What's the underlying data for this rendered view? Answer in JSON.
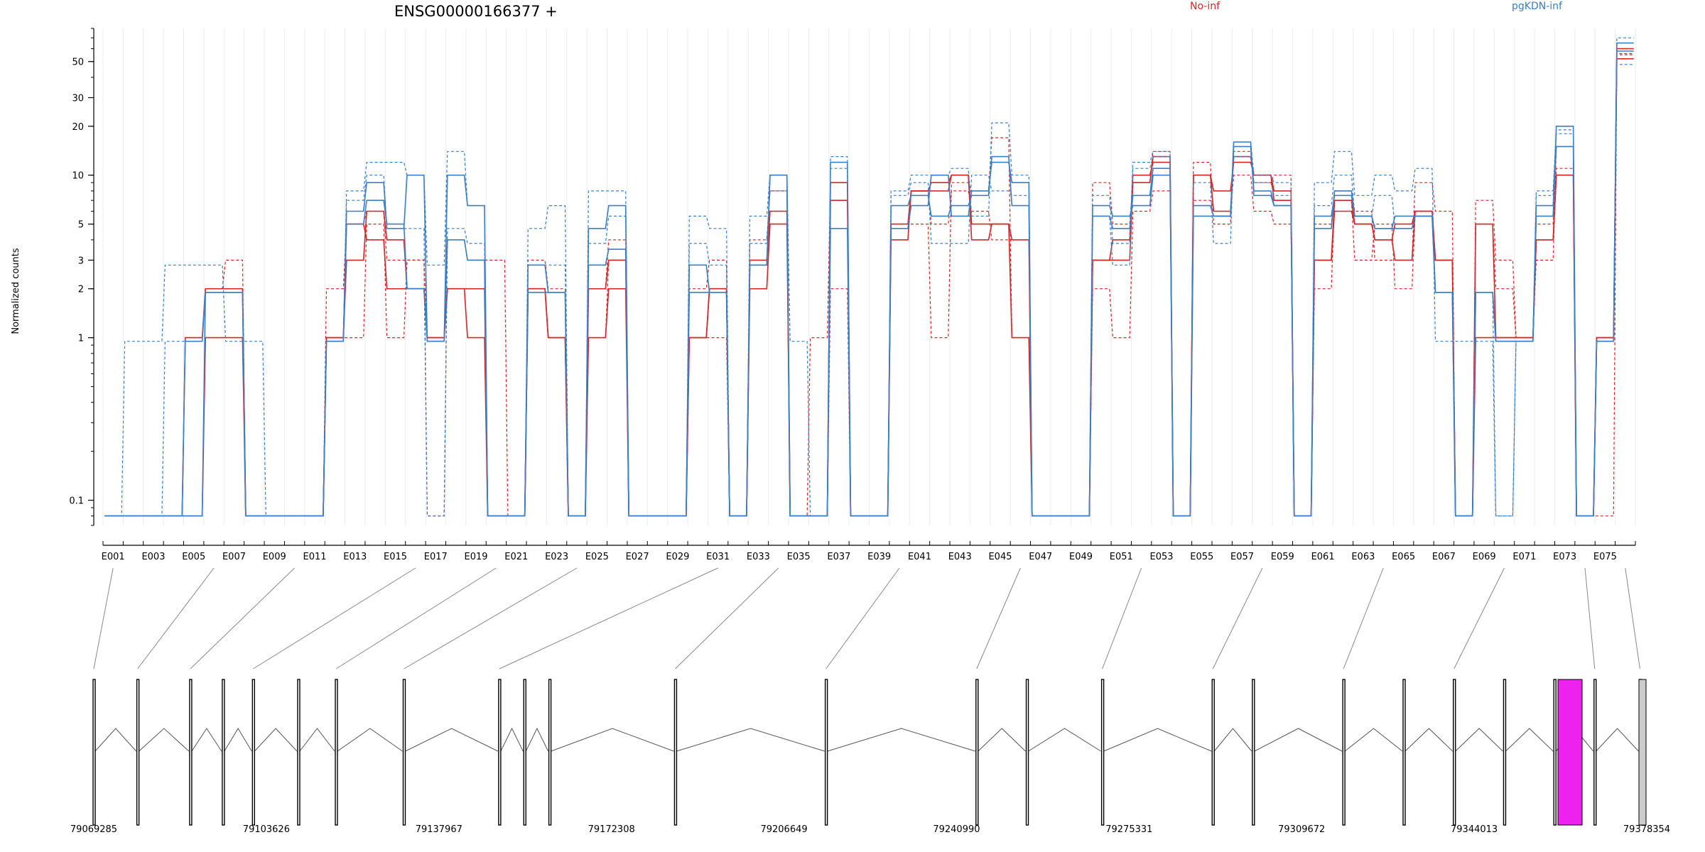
{
  "chart_data": {
    "type": "line",
    "title": "ENSG00000166377 +",
    "ylabel": "Normalized counts",
    "yscale": "log",
    "ylim": [
      0.07,
      80
    ],
    "yticks": [
      0.1,
      1,
      2,
      3,
      5,
      10,
      20,
      30,
      50
    ],
    "ytick_labels": [
      "0.1",
      "1",
      "2",
      "3",
      "5",
      "10",
      "20",
      "30",
      "50"
    ],
    "legend_position": "top",
    "legend": [
      {
        "name": "No-inf",
        "color": "#d62728"
      },
      {
        "name": "pgKDN-inf",
        "color": "#3b7fc4"
      }
    ],
    "exon_tick_labels": [
      "E001",
      "E003",
      "E005",
      "E007",
      "E009",
      "E011",
      "E013",
      "E015",
      "E017",
      "E019",
      "E021",
      "E023",
      "E025",
      "E027",
      "E029",
      "E031",
      "E033",
      "E035",
      "E037",
      "E039",
      "E041",
      "E043",
      "E045",
      "E047",
      "E049",
      "E051",
      "E053",
      "E055",
      "E057",
      "E059",
      "E061",
      "E063",
      "E065",
      "E067",
      "E069",
      "E071",
      "E073",
      "E075"
    ],
    "exons": [
      "E001",
      "E002",
      "E003",
      "E004",
      "E005",
      "E006",
      "E007",
      "E008",
      "E009",
      "E010",
      "E011",
      "E012",
      "E013",
      "E014",
      "E015",
      "E016",
      "E017",
      "E018",
      "E019",
      "E020",
      "E021",
      "E022",
      "E023",
      "E024",
      "E025",
      "E026",
      "E027",
      "E028",
      "E029",
      "E030",
      "E031",
      "E032",
      "E033",
      "E034",
      "E035",
      "E036",
      "E037",
      "E038",
      "E039",
      "E040",
      "E041",
      "E042",
      "E043",
      "E044",
      "E045",
      "E046",
      "E047",
      "E048",
      "E049",
      "E050",
      "E051",
      "E052",
      "E053",
      "E054",
      "E055",
      "E056",
      "E057",
      "E058",
      "E059",
      "E060",
      "E061",
      "E062",
      "E063",
      "E064",
      "E065",
      "E066",
      "E067",
      "E068",
      "E069",
      "E070",
      "E071",
      "E072",
      "E073",
      "E074",
      "E075",
      "E076"
    ],
    "series": [
      {
        "group": "No-inf",
        "style": "solid",
        "values": [
          0.08,
          0.08,
          0.08,
          0.08,
          0.08,
          1,
          1,
          0.08,
          0.08,
          0.08,
          0.08,
          1,
          3,
          6,
          4,
          2,
          1,
          2,
          2,
          0.08,
          0.08,
          2,
          1,
          0.08,
          1,
          2,
          0.08,
          0.08,
          0.08,
          1,
          2,
          0.08,
          2,
          5,
          0.08,
          0.08,
          7,
          0.08,
          0.08,
          4,
          8,
          9,
          10,
          4,
          5,
          1,
          0.08,
          0.08,
          0.08,
          3,
          4,
          10,
          12,
          0.08,
          10,
          8,
          12,
          10,
          8,
          0.08,
          3,
          6,
          5,
          4,
          5,
          6,
          3,
          0.08,
          1,
          1,
          1,
          4,
          10,
          0.08,
          1,
          60
        ]
      },
      {
        "group": "No-inf",
        "style": "dashed",
        "values": [
          0.08,
          0.08,
          0.08,
          0.08,
          1,
          2,
          3,
          0.08,
          0.08,
          0.08,
          0.08,
          2,
          5,
          6,
          3,
          3,
          1,
          4,
          3,
          3,
          0.08,
          3,
          2,
          0.08,
          2,
          4,
          0.08,
          0.08,
          0.08,
          2,
          3,
          0.08,
          4,
          8,
          0.08,
          1,
          9,
          0.08,
          0.08,
          5,
          5,
          1,
          9,
          8,
          17,
          1,
          0.08,
          0.08,
          0.08,
          9,
          5,
          9,
          14,
          0.08,
          12,
          5,
          14,
          9,
          10,
          0.08,
          5,
          8,
          6,
          3,
          3,
          9,
          6,
          0.08,
          7,
          3,
          1,
          5,
          11,
          0.08,
          1,
          56
        ]
      },
      {
        "group": "No-inf",
        "style": "dashed",
        "values": [
          0.08,
          0.08,
          0.08,
          0.08,
          1,
          2,
          2,
          0.08,
          0.08,
          0.08,
          0.08,
          1,
          1,
          5,
          1,
          3,
          0.08,
          4,
          3,
          0.08,
          0.08,
          2,
          1,
          0.08,
          1,
          3,
          0.08,
          0.08,
          0.08,
          1,
          1,
          0.08,
          2,
          6,
          0.08,
          0.08,
          2,
          0.08,
          0.08,
          4,
          8,
          5,
          8,
          6,
          4,
          4,
          0.08,
          0.08,
          0.08,
          2,
          1,
          6,
          8,
          0.08,
          7,
          6,
          10,
          6,
          5,
          0.08,
          2,
          7,
          3,
          5,
          2,
          6,
          3,
          0.08,
          5,
          2,
          1,
          3,
          15,
          0.08,
          0.08,
          55
        ]
      },
      {
        "group": "No-inf",
        "style": "solid",
        "values": [
          0.08,
          0.08,
          0.08,
          0.08,
          1,
          2,
          2,
          0.08,
          0.08,
          0.08,
          0.08,
          1,
          5,
          4,
          2,
          2,
          1,
          2,
          1,
          0.08,
          0.08,
          2,
          1,
          0.08,
          2,
          3,
          0.08,
          0.08,
          0.08,
          1,
          2,
          0.08,
          3,
          6,
          0.08,
          0.08,
          9,
          0.08,
          0.08,
          5,
          8,
          8,
          10,
          5,
          5,
          4,
          0.08,
          0.08,
          0.08,
          3,
          3,
          9,
          13,
          0.08,
          10,
          6,
          13,
          10,
          7,
          0.08,
          3,
          7,
          5,
          4,
          3,
          6,
          3,
          0.08,
          5,
          1,
          1,
          4,
          10,
          0.08,
          1,
          52
        ]
      },
      {
        "group": "pgKDN-inf",
        "style": "solid",
        "values": [
          0.08,
          0.08,
          0.08,
          0.08,
          0.08,
          1.9,
          1.9,
          0.08,
          0.08,
          0.08,
          0.08,
          0.95,
          5,
          7,
          5,
          2,
          0.95,
          4,
          3,
          0.08,
          0.08,
          1.9,
          1.9,
          0.08,
          2.8,
          3.5,
          0.08,
          0.08,
          0.08,
          1.9,
          1.9,
          0.08,
          2.8,
          10,
          0.08,
          0.08,
          4.7,
          0.08,
          0.08,
          4.7,
          6.5,
          10,
          5.6,
          8,
          12,
          9,
          0.08,
          0.08,
          0.08,
          6.5,
          5.6,
          6.5,
          10,
          0.08,
          5.6,
          5.6,
          15,
          8,
          6.5,
          0.08,
          5.6,
          7.5,
          5.6,
          4.7,
          5.6,
          5.6,
          1.9,
          0.08,
          1.9,
          0.95,
          0.95,
          6.5,
          15,
          0.08,
          0.95,
          65
        ]
      },
      {
        "group": "pgKDN-inf",
        "style": "dashed",
        "values": [
          0.08,
          0.95,
          0.95,
          2.8,
          2.8,
          2.8,
          0.95,
          0.95,
          0.08,
          0.08,
          0.08,
          0.95,
          8,
          12,
          12,
          10,
          2.8,
          14,
          6.5,
          0.08,
          0.08,
          4.7,
          6.5,
          0.08,
          8,
          8,
          0.08,
          0.08,
          0.08,
          5.6,
          4.7,
          0.08,
          5.6,
          10,
          0.95,
          0.08,
          13,
          0.08,
          0.08,
          8,
          10,
          10,
          11,
          5.6,
          21,
          10,
          0.08,
          0.08,
          0.08,
          7.5,
          3.8,
          12,
          14,
          0.08,
          9,
          3.8,
          16,
          10,
          9,
          0.08,
          9,
          14,
          7.5,
          10,
          8,
          11,
          0.95,
          0.95,
          0.95,
          0.08,
          0.95,
          8,
          19,
          0.08,
          0.95,
          70
        ]
      },
      {
        "group": "pgKDN-inf",
        "style": "dashed",
        "values": [
          0.08,
          0.08,
          0.08,
          0.95,
          0.95,
          1.9,
          1.9,
          0.08,
          0.08,
          0.08,
          0.08,
          0.95,
          7,
          10,
          4.7,
          4.7,
          0.08,
          4.7,
          3.8,
          0.08,
          0.08,
          2.8,
          2.8,
          0.08,
          3.8,
          5.6,
          0.08,
          0.08,
          0.08,
          3.8,
          2.8,
          0.08,
          3.8,
          8,
          0.08,
          0.08,
          11,
          0.08,
          0.08,
          7.5,
          9,
          3.8,
          3.8,
          10,
          8,
          7.5,
          0.08,
          0.08,
          0.08,
          5.6,
          2.8,
          11,
          13,
          0.08,
          6.5,
          5.6,
          13,
          9,
          7.5,
          0.08,
          6.5,
          10,
          5.6,
          7.5,
          4.7,
          5.6,
          1.9,
          0.08,
          1.9,
          0.08,
          0.95,
          7.5,
          18,
          0.08,
          0.95,
          48
        ]
      },
      {
        "group": "pgKDN-inf",
        "style": "solid",
        "values": [
          0.08,
          0.08,
          0.08,
          0.08,
          0.95,
          1.9,
          1.9,
          0.08,
          0.08,
          0.08,
          0.08,
          0.95,
          6,
          9,
          4.7,
          10,
          0.95,
          10,
          6.5,
          0.08,
          0.08,
          2.8,
          1.9,
          0.08,
          4.7,
          6.5,
          0.08,
          0.08,
          0.08,
          2.8,
          1.9,
          0.08,
          2.8,
          10,
          0.08,
          0.08,
          12,
          0.08,
          0.08,
          6.5,
          7.5,
          5.6,
          6.5,
          7.5,
          13,
          6.5,
          0.08,
          0.08,
          0.08,
          5.6,
          4.7,
          7.5,
          11,
          0.08,
          6.5,
          5.6,
          16,
          7.5,
          6.5,
          0.08,
          4.7,
          8,
          5.6,
          4.7,
          4.7,
          5.6,
          1.9,
          0.08,
          1.9,
          0.95,
          0.95,
          5.6,
          20,
          0.08,
          0.95,
          58
        ]
      }
    ],
    "exon_links": [
      {
        "exon": "E001",
        "genomic": 79069285
      },
      {
        "exon": "E006",
        "genomic": 79078000
      },
      {
        "exon": "E010",
        "genomic": 79088500
      },
      {
        "exon": "E016",
        "genomic": 79101000
      },
      {
        "exon": "E020",
        "genomic": 79117500
      },
      {
        "exon": "E024",
        "genomic": 79131000
      },
      {
        "exon": "E031",
        "genomic": 79150000
      },
      {
        "exon": "E034",
        "genomic": 79185000
      },
      {
        "exon": "E040",
        "genomic": 79215000
      },
      {
        "exon": "E046",
        "genomic": 79245000
      },
      {
        "exon": "E052",
        "genomic": 79270000
      },
      {
        "exon": "E058",
        "genomic": 79292000
      },
      {
        "exon": "E064",
        "genomic": 79318000
      },
      {
        "exon": "E070",
        "genomic": 79340000
      },
      {
        "exon": "E074",
        "genomic": 79368000
      },
      {
        "exon": "E076",
        "genomic": 79377000
      }
    ],
    "genomic_ticks": [
      "79069285",
      "79103626",
      "79137967",
      "79172308",
      "79206649",
      "79240990",
      "79275331",
      "79309672",
      "79344013",
      "79378354"
    ],
    "genomic_range": [
      79069285,
      79378354
    ],
    "highlight_color": "#ee22ee"
  }
}
